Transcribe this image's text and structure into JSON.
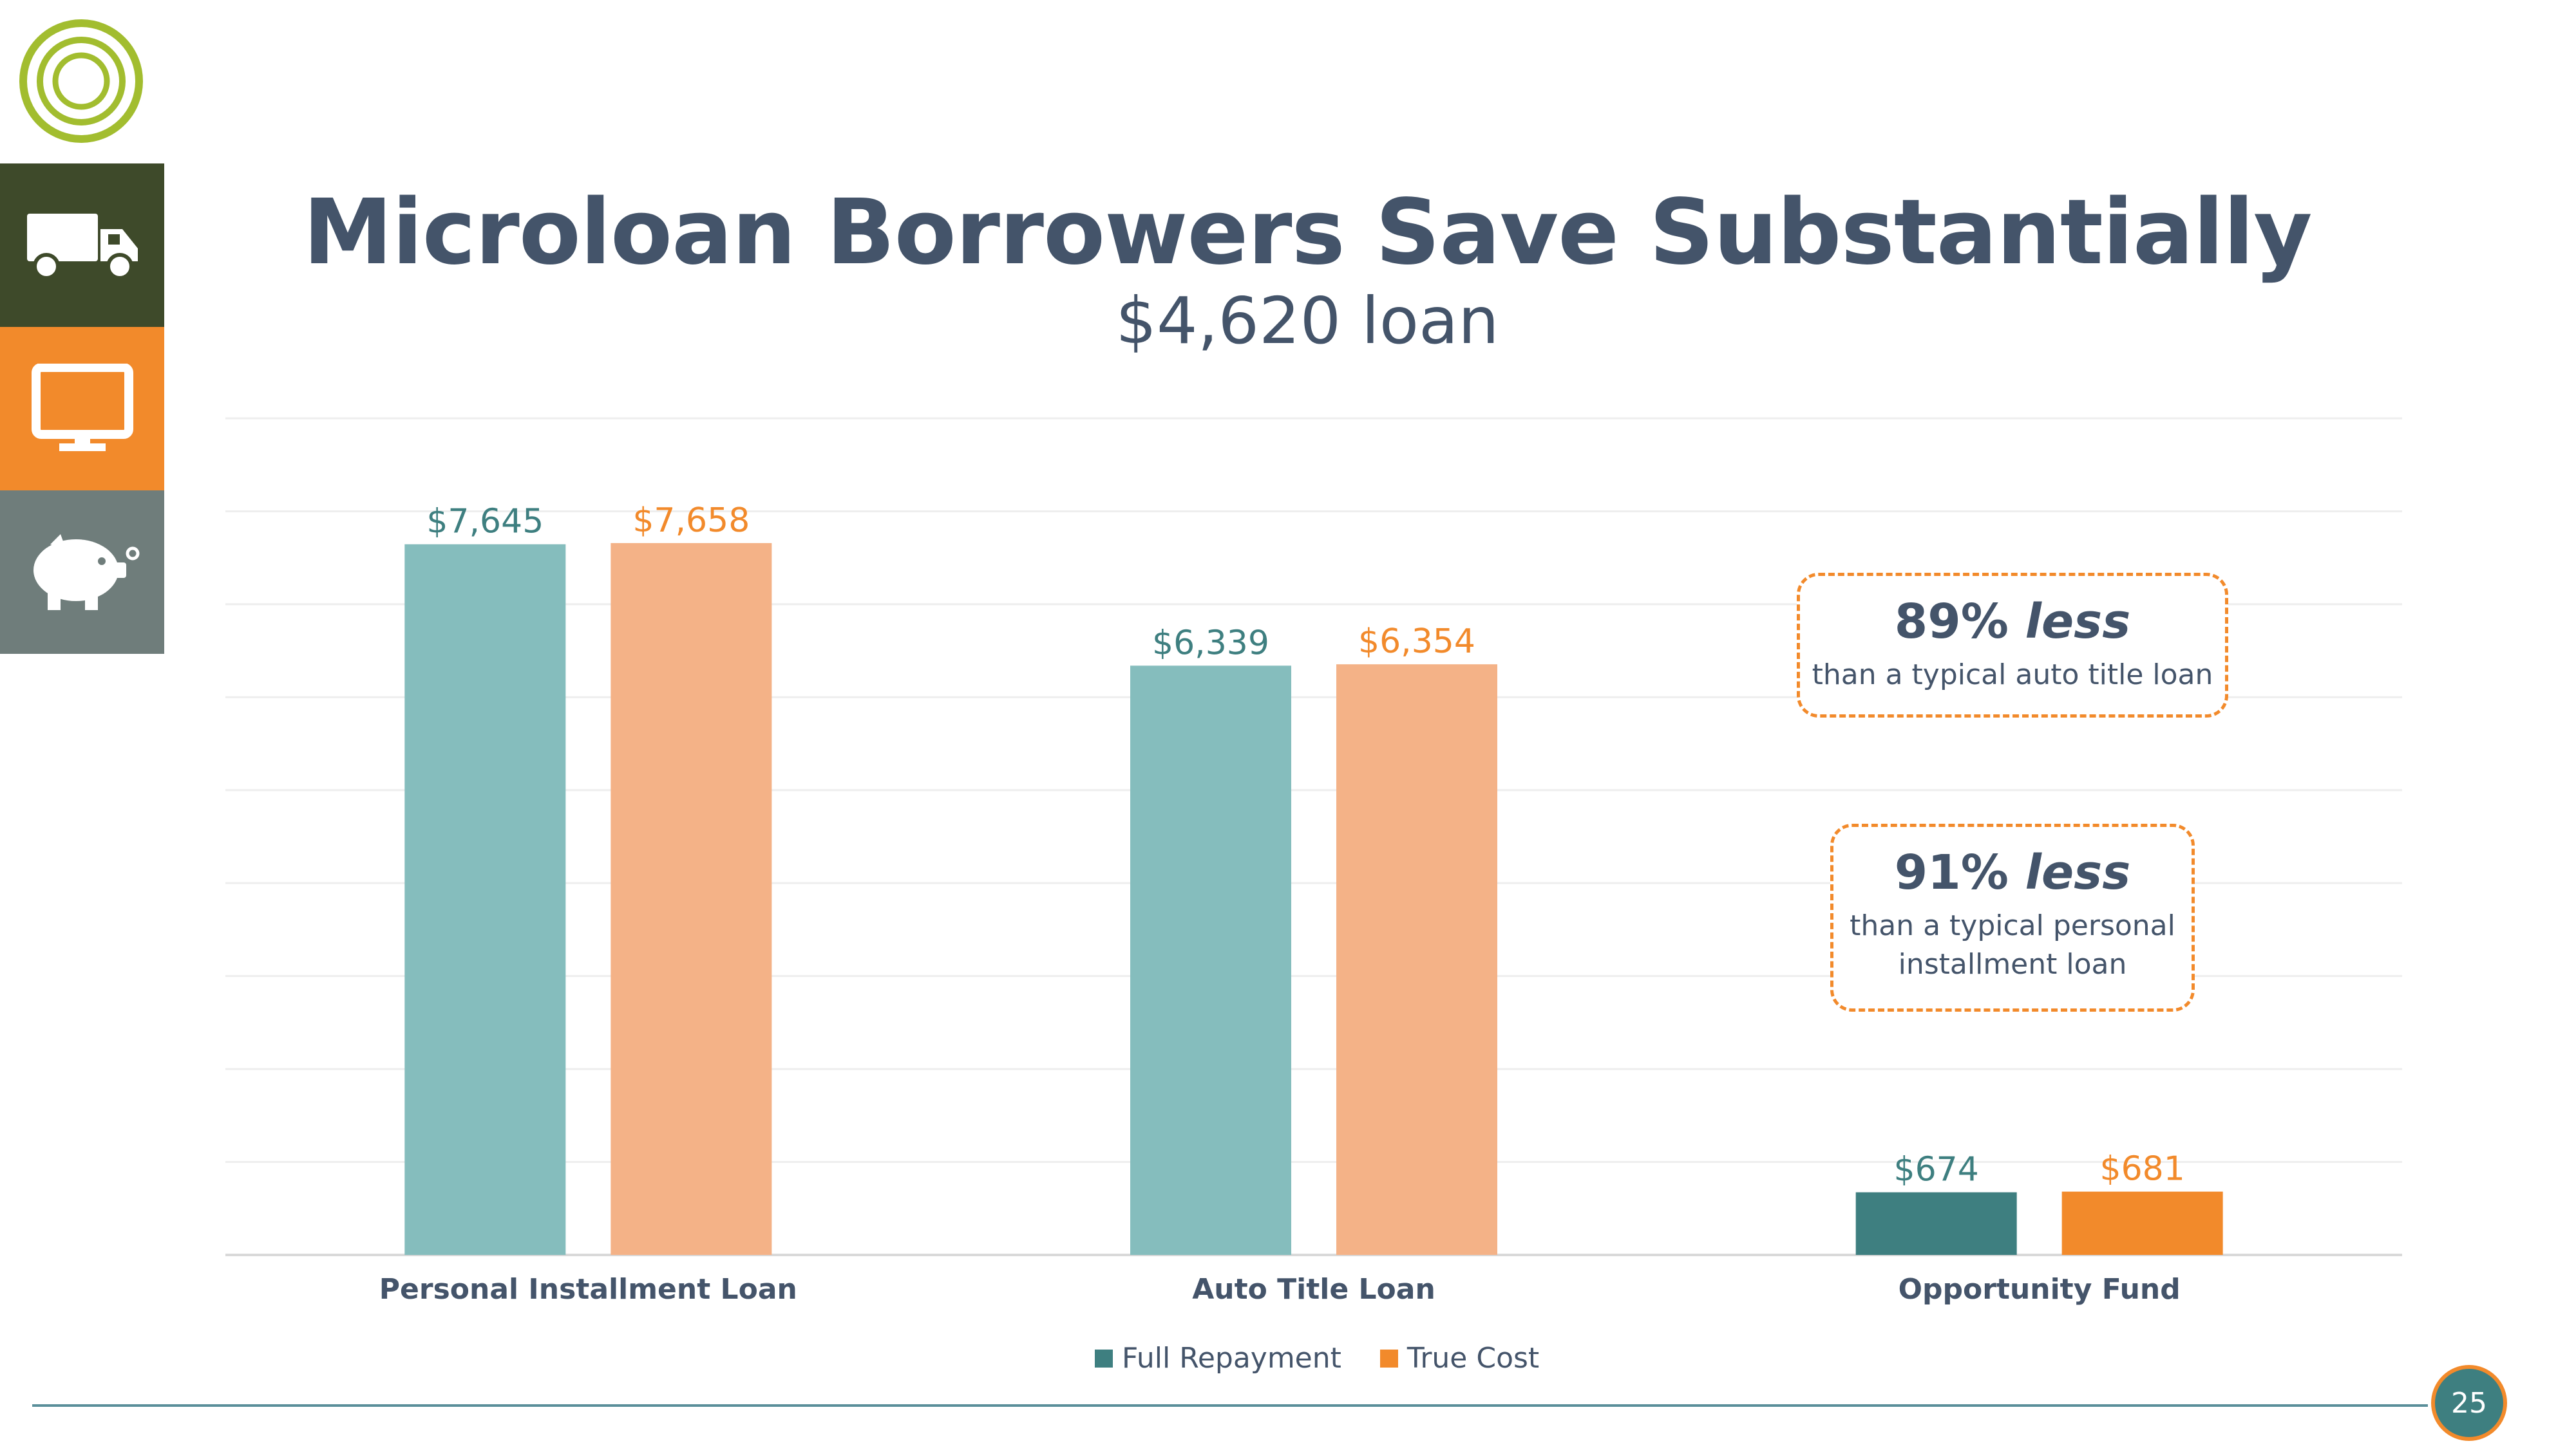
{
  "slide": {
    "title": "Microloan Borrowers Save Substantially",
    "subtitle": "$4,620 loan",
    "page_number": "25"
  },
  "callouts": [
    {
      "pct": "89%",
      "emph": "less",
      "text": "than a typical auto title loan"
    },
    {
      "pct": "91%",
      "emph": "less",
      "line1": "than a typical personal",
      "line2": "installment loan"
    }
  ],
  "colors": {
    "full_repayment": "#85bdbd",
    "true_cost": "#f4b287",
    "highlight_full": "#3e7f80",
    "highlight_true": "#f28a2b",
    "label_full": "#3e7f80",
    "label_true": "#f28a2b",
    "text": "#44546a"
  },
  "sidebar_icons": [
    "truck-icon",
    "monitor-icon",
    "piggy-bank-icon"
  ],
  "chart_data": {
    "type": "bar",
    "categories": [
      "Personal Installment Loan",
      "Auto Title Loan",
      "Opportunity Fund"
    ],
    "series": [
      {
        "name": "Full Repayment",
        "values": [
          7645,
          6339,
          674
        ],
        "labels": [
          "$7,645",
          "$6,339",
          "$674"
        ]
      },
      {
        "name": "True Cost",
        "values": [
          7658,
          6354,
          681
        ],
        "labels": [
          "$7,658",
          "$6,354",
          "$681"
        ]
      }
    ],
    "ylim": [
      0,
      9000
    ],
    "grid": true,
    "legend": "bottom",
    "xlabel": "",
    "ylabel": ""
  }
}
